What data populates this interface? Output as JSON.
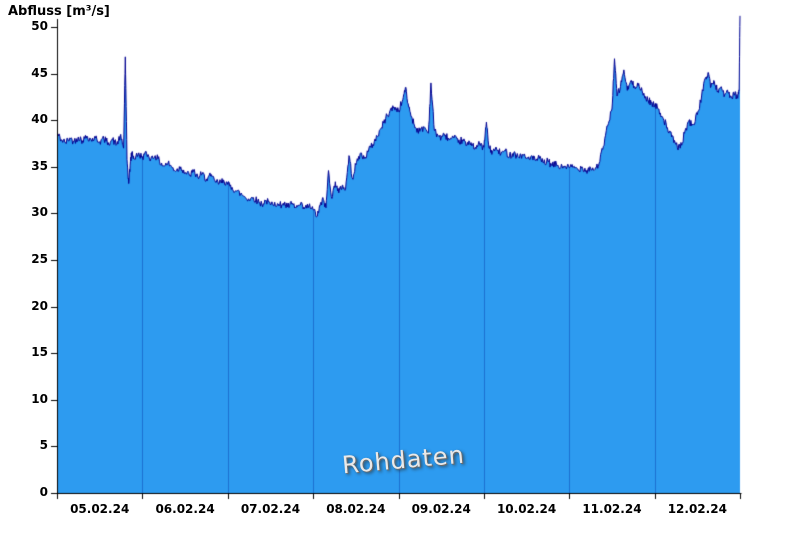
{
  "title": "Abfluss [m³/s]",
  "watermark": "Rohdaten",
  "chart_data": {
    "type": "area",
    "title": "Abfluss [m³/s]",
    "xlabel": "",
    "ylabel": "Abfluss [m³/s]",
    "series_name": "Rohdaten",
    "ylim": [
      0,
      50
    ],
    "ytick_step": 5,
    "y_ticks": [
      0,
      5,
      10,
      15,
      20,
      25,
      30,
      35,
      40,
      45,
      50
    ],
    "x_categories": [
      "05.02.24",
      "06.02.24",
      "07.02.24",
      "08.02.24",
      "09.02.24",
      "10.02.24",
      "11.02.24",
      "12.02.24"
    ],
    "x_range_days": [
      0,
      8
    ],
    "grid": "vertical-day-lines",
    "legend": "none",
    "fill_color": "#2D9BF0",
    "line_color": "#000090",
    "grid_color": "#1C6FD0",
    "axis_color": "#000000",
    "noise_amplitude": 0.4,
    "points": [
      [
        0.0,
        38.6
      ],
      [
        0.05,
        37.9
      ],
      [
        0.1,
        37.6
      ],
      [
        0.15,
        38.1
      ],
      [
        0.2,
        37.7
      ],
      [
        0.25,
        38.2
      ],
      [
        0.3,
        37.8
      ],
      [
        0.35,
        38.3
      ],
      [
        0.4,
        37.9
      ],
      [
        0.45,
        38.1
      ],
      [
        0.5,
        37.7
      ],
      [
        0.55,
        38.0
      ],
      [
        0.6,
        37.6
      ],
      [
        0.65,
        37.9
      ],
      [
        0.7,
        37.4
      ],
      [
        0.74,
        38.3
      ],
      [
        0.78,
        37.0
      ],
      [
        0.8,
        46.8
      ],
      [
        0.82,
        35.8
      ],
      [
        0.84,
        33.2
      ],
      [
        0.86,
        35.6
      ],
      [
        0.88,
        36.6
      ],
      [
        0.9,
        35.9
      ],
      [
        0.95,
        36.3
      ],
      [
        1.0,
        36.1
      ],
      [
        1.05,
        36.4
      ],
      [
        1.1,
        35.9
      ],
      [
        1.15,
        36.2
      ],
      [
        1.2,
        35.6
      ],
      [
        1.25,
        35.1
      ],
      [
        1.3,
        35.4
      ],
      [
        1.35,
        34.9
      ],
      [
        1.4,
        34.6
      ],
      [
        1.45,
        35.0
      ],
      [
        1.5,
        34.4
      ],
      [
        1.55,
        34.1
      ],
      [
        1.6,
        34.5
      ],
      [
        1.65,
        33.9
      ],
      [
        1.7,
        34.2
      ],
      [
        1.75,
        33.7
      ],
      [
        1.8,
        34.0
      ],
      [
        1.85,
        33.5
      ],
      [
        1.9,
        33.2
      ],
      [
        1.95,
        33.6
      ],
      [
        2.0,
        33.1
      ],
      [
        2.05,
        32.8
      ],
      [
        2.1,
        32.4
      ],
      [
        2.15,
        32.1
      ],
      [
        2.2,
        31.8
      ],
      [
        2.25,
        31.5
      ],
      [
        2.3,
        31.7
      ],
      [
        2.35,
        31.3
      ],
      [
        2.4,
        31.0
      ],
      [
        2.45,
        31.4
      ],
      [
        2.5,
        30.9
      ],
      [
        2.55,
        31.2
      ],
      [
        2.6,
        30.8
      ],
      [
        2.65,
        31.1
      ],
      [
        2.7,
        30.7
      ],
      [
        2.75,
        31.0
      ],
      [
        2.8,
        30.6
      ],
      [
        2.85,
        30.9
      ],
      [
        2.9,
        30.5
      ],
      [
        2.95,
        30.8
      ],
      [
        3.0,
        30.4
      ],
      [
        3.05,
        29.7
      ],
      [
        3.08,
        30.8
      ],
      [
        3.12,
        31.5
      ],
      [
        3.15,
        30.6
      ],
      [
        3.18,
        34.6
      ],
      [
        3.22,
        31.6
      ],
      [
        3.26,
        33.4
      ],
      [
        3.3,
        32.2
      ],
      [
        3.34,
        33.0
      ],
      [
        3.38,
        32.6
      ],
      [
        3.42,
        36.2
      ],
      [
        3.46,
        33.8
      ],
      [
        3.5,
        35.2
      ],
      [
        3.55,
        36.4
      ],
      [
        3.6,
        35.9
      ],
      [
        3.65,
        36.8
      ],
      [
        3.7,
        37.4
      ],
      [
        3.75,
        38.3
      ],
      [
        3.8,
        39.2
      ],
      [
        3.85,
        40.2
      ],
      [
        3.9,
        41.0
      ],
      [
        3.95,
        41.4
      ],
      [
        4.0,
        41.0
      ],
      [
        4.05,
        42.2
      ],
      [
        4.08,
        43.5
      ],
      [
        4.12,
        41.4
      ],
      [
        4.16,
        40.2
      ],
      [
        4.2,
        39.2
      ],
      [
        4.25,
        38.8
      ],
      [
        4.3,
        39.3
      ],
      [
        4.35,
        38.6
      ],
      [
        4.38,
        44.0
      ],
      [
        4.42,
        38.9
      ],
      [
        4.46,
        38.4
      ],
      [
        4.5,
        38.1
      ],
      [
        4.55,
        38.4
      ],
      [
        4.6,
        37.9
      ],
      [
        4.65,
        38.1
      ],
      [
        4.7,
        37.6
      ],
      [
        4.75,
        37.9
      ],
      [
        4.8,
        37.3
      ],
      [
        4.85,
        37.6
      ],
      [
        4.9,
        37.1
      ],
      [
        4.95,
        37.4
      ],
      [
        5.0,
        37.1
      ],
      [
        5.03,
        39.8
      ],
      [
        5.06,
        37.0
      ],
      [
        5.1,
        36.6
      ],
      [
        5.15,
        36.9
      ],
      [
        5.2,
        36.4
      ],
      [
        5.25,
        36.7
      ],
      [
        5.3,
        36.2
      ],
      [
        5.35,
        36.5
      ],
      [
        5.4,
        36.1
      ],
      [
        5.45,
        36.3
      ],
      [
        5.5,
        35.9
      ],
      [
        5.55,
        36.1
      ],
      [
        5.6,
        35.7
      ],
      [
        5.65,
        35.9
      ],
      [
        5.7,
        35.4
      ],
      [
        5.75,
        35.6
      ],
      [
        5.8,
        35.1
      ],
      [
        5.85,
        35.3
      ],
      [
        5.9,
        34.9
      ],
      [
        5.95,
        35.1
      ],
      [
        6.0,
        34.9
      ],
      [
        6.05,
        35.0
      ],
      [
        6.1,
        34.7
      ],
      [
        6.15,
        35.0
      ],
      [
        6.2,
        34.6
      ],
      [
        6.25,
        34.9
      ],
      [
        6.3,
        34.7
      ],
      [
        6.35,
        35.4
      ],
      [
        6.4,
        37.2
      ],
      [
        6.45,
        39.4
      ],
      [
        6.5,
        41.2
      ],
      [
        6.53,
        46.6
      ],
      [
        6.56,
        42.6
      ],
      [
        6.6,
        43.6
      ],
      [
        6.64,
        45.4
      ],
      [
        6.68,
        43.2
      ],
      [
        6.72,
        44.2
      ],
      [
        6.76,
        43.6
      ],
      [
        6.8,
        44.0
      ],
      [
        6.84,
        43.2
      ],
      [
        6.88,
        42.6
      ],
      [
        6.92,
        42.2
      ],
      [
        6.96,
        41.9
      ],
      [
        7.0,
        41.6
      ],
      [
        7.05,
        41.2
      ],
      [
        7.1,
        40.2
      ],
      [
        7.15,
        39.2
      ],
      [
        7.2,
        38.2
      ],
      [
        7.25,
        37.4
      ],
      [
        7.3,
        37.0
      ],
      [
        7.35,
        38.6
      ],
      [
        7.4,
        39.9
      ],
      [
        7.45,
        39.5
      ],
      [
        7.5,
        40.6
      ],
      [
        7.55,
        42.6
      ],
      [
        7.6,
        44.6
      ],
      [
        7.63,
        45.1
      ],
      [
        7.66,
        43.6
      ],
      [
        7.7,
        44.1
      ],
      [
        7.74,
        43.1
      ],
      [
        7.78,
        43.6
      ],
      [
        7.82,
        42.7
      ],
      [
        7.86,
        43.0
      ],
      [
        7.9,
        42.4
      ],
      [
        7.94,
        42.8
      ],
      [
        7.97,
        42.4
      ],
      [
        7.99,
        43.2
      ],
      [
        8.0,
        51.2
      ]
    ]
  }
}
